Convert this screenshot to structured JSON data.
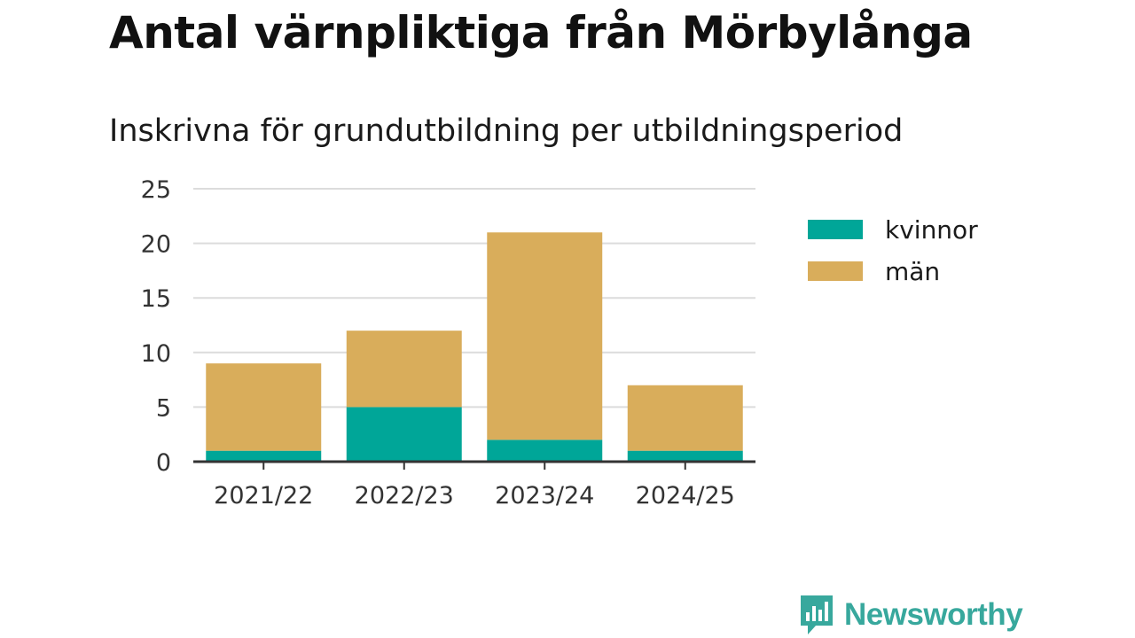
{
  "header": {
    "title": "Antal värnpliktiga från Mörbylånga",
    "subtitle": "Inskrivna för grundutbildning per utbildningsperiod"
  },
  "chart_data": {
    "type": "bar",
    "stacked": true,
    "categories": [
      "2021/22",
      "2022/23",
      "2023/24",
      "2024/25"
    ],
    "series": [
      {
        "name": "kvinnor",
        "values": [
          1,
          5,
          2,
          1
        ],
        "color": "#00a698"
      },
      {
        "name": "män",
        "values": [
          8,
          7,
          19,
          6
        ],
        "color": "#d9ad5b"
      }
    ],
    "ylim": [
      0,
      25
    ],
    "yticks": [
      0,
      5,
      10,
      15,
      20,
      25
    ],
    "grid": true,
    "legend_position": "right"
  },
  "branding": {
    "name": "Newsworthy",
    "icon": "newsworthy-logo-icon",
    "color": "#38a89d"
  }
}
